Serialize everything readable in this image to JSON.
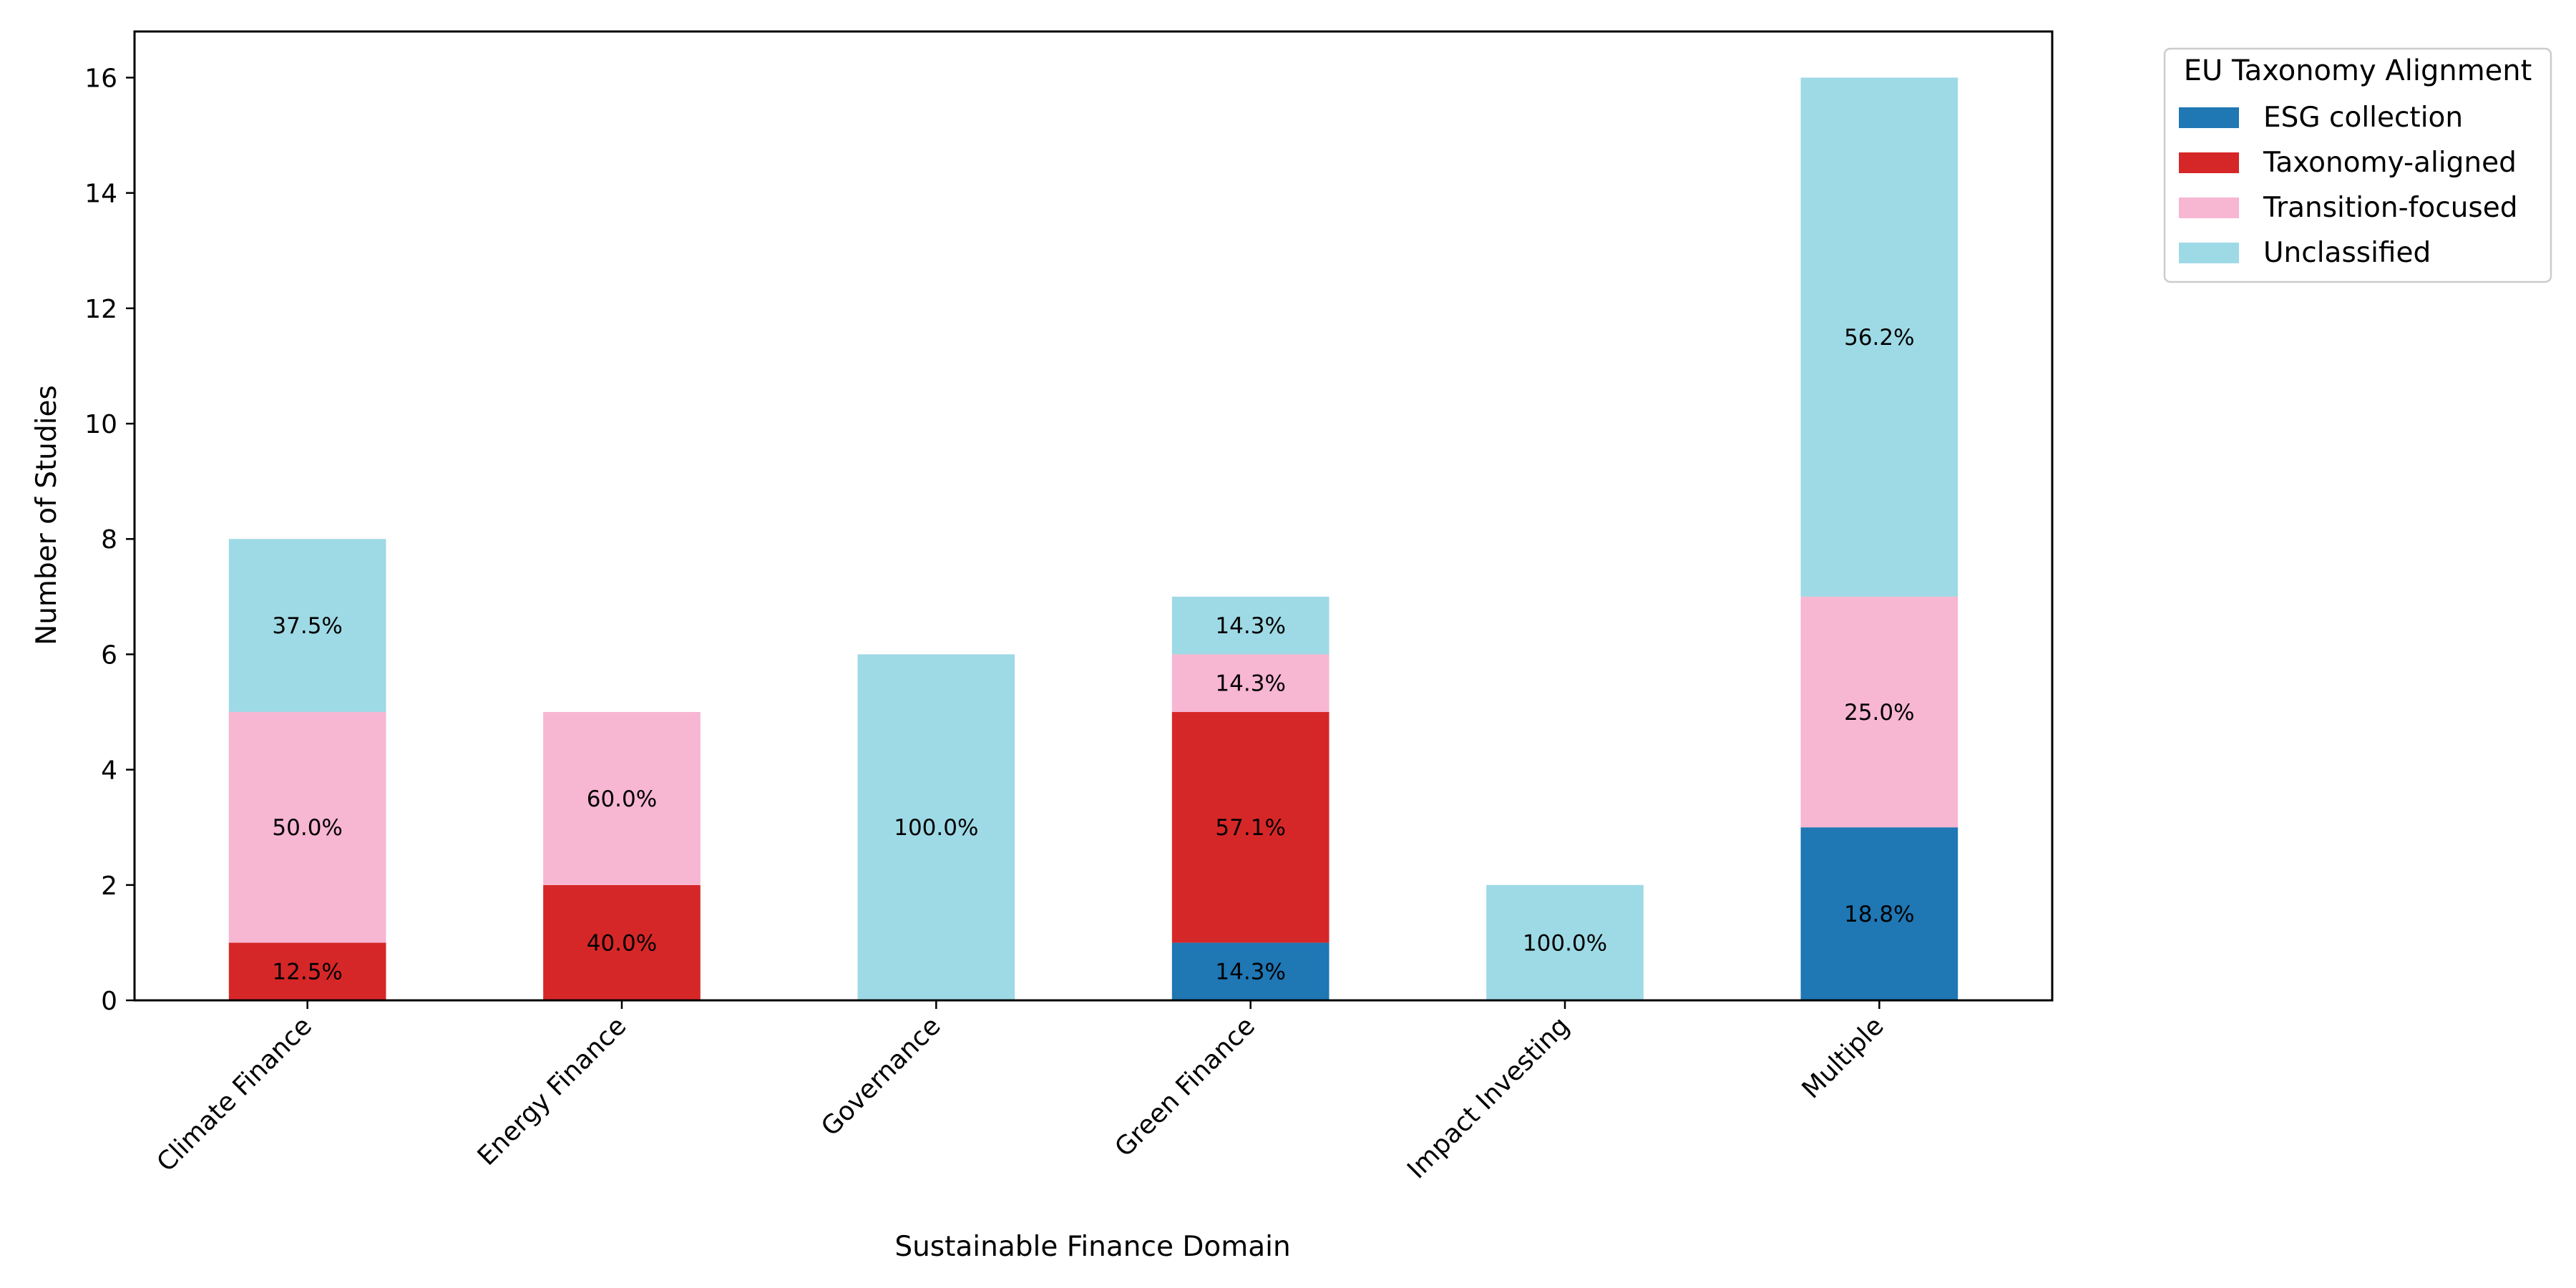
{
  "chart_data": {
    "type": "bar",
    "stacked": true,
    "title": "",
    "xlabel": "Sustainable Finance Domain",
    "ylabel": "Number of Studies",
    "ylim": [
      0,
      16.8
    ],
    "yticks": [
      0,
      2,
      4,
      6,
      8,
      10,
      12,
      14,
      16
    ],
    "yticks_text": [
      "0",
      "2",
      "4",
      "6",
      "8",
      "10",
      "12",
      "14",
      "16"
    ],
    "grid": false,
    "categories": [
      "Climate Finance",
      "Energy Finance",
      "Governance",
      "Green Finance",
      "Impact Investing",
      "Multiple"
    ],
    "legend": {
      "title": "EU Taxonomy Alignment",
      "placement": "outside-top-right"
    },
    "series": [
      {
        "name": "ESG collection",
        "color": "#1f77b4",
        "values": [
          0,
          0,
          0,
          1,
          0,
          3
        ],
        "labels": [
          "",
          "",
          "",
          "14.3%",
          "",
          "18.8%"
        ]
      },
      {
        "name": "Taxonomy-aligned",
        "color": "#d62728",
        "values": [
          1,
          2,
          0,
          4,
          0,
          0
        ],
        "labels": [
          "12.5%",
          "40.0%",
          "",
          "57.1%",
          "",
          ""
        ]
      },
      {
        "name": "Transition-focused",
        "color": "#f7b6d2",
        "values": [
          4,
          3,
          0,
          1,
          0,
          4
        ],
        "labels": [
          "50.0%",
          "60.0%",
          "",
          "14.3%",
          "",
          "25.0%"
        ]
      },
      {
        "name": "Unclassified",
        "color": "#9edae5",
        "values": [
          3,
          0,
          6,
          1,
          2,
          9
        ],
        "labels": [
          "37.5%",
          "",
          "100.0%",
          "14.3%",
          "100.0%",
          "56.2%"
        ]
      }
    ]
  }
}
